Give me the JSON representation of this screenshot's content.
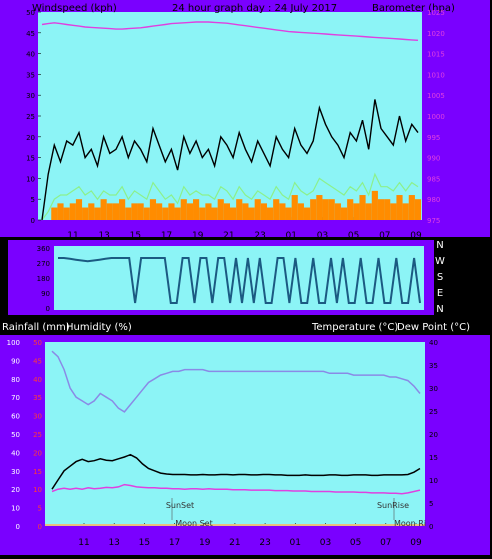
{
  "header": {
    "windspeed_label": "Windspeed (kph)",
    "title": "24 hour graph day : 24 July 2017",
    "barometer_label": "Barometer (hpa)"
  },
  "middle_header": {
    "rainfall_label": "Rainfall (mm)",
    "humidity_label": "Humidity (%)",
    "temperature_label": "Temperature (°C)",
    "dewpoint_label": "Dew Point (°C)"
  },
  "colors": {
    "frame": "#7a00ff",
    "plot_bg": "#8cf4f6",
    "gust": "#000000",
    "wind_avg": "#8cf08c",
    "wind_orange": "#ff8c00",
    "barometer": "#e040e0",
    "direction": "#1b5a82",
    "temperature": "#000000",
    "dewpoint": "#e040e0",
    "humidity": "#8a8ae6",
    "rain_axis_text": "#ff3b3b"
  },
  "chart_data": [
    {
      "type": "line",
      "name": "wind_and_barometer",
      "xlabel": "",
      "x_ticks": [
        "11",
        "13",
        "15",
        "17",
        "19",
        "21",
        "23",
        "01",
        "03",
        "05",
        "07",
        "09"
      ],
      "y_left_ticks": [
        0,
        5,
        10,
        15,
        20,
        25,
        30,
        35,
        40,
        45,
        50
      ],
      "y_left_range": [
        0,
        50
      ],
      "y_right_ticks": [
        975,
        980,
        985,
        990,
        995,
        1000,
        1005,
        1010,
        1015,
        1020,
        1025
      ],
      "y_right_range": [
        975,
        1025
      ],
      "grid": false,
      "series": [
        {
          "key": "gust",
          "values": [
            0,
            11,
            18,
            14,
            19,
            18,
            21,
            15,
            17,
            13,
            20,
            16,
            17,
            20,
            15,
            19,
            17,
            14,
            22,
            18,
            14,
            17,
            12,
            20,
            16,
            19,
            15,
            17,
            13,
            20,
            18,
            15,
            21,
            17,
            14,
            19,
            16,
            13,
            20,
            17,
            15,
            22,
            18,
            16,
            19,
            27,
            23,
            20,
            18,
            15,
            21,
            19,
            24,
            17,
            29,
            22,
            20,
            18,
            25,
            19,
            23,
            21
          ]
        },
        {
          "key": "wind_avg",
          "values": [
            0,
            2,
            5,
            6,
            6,
            7,
            8,
            6,
            7,
            5,
            7,
            6,
            6,
            8,
            5,
            7,
            6,
            5,
            9,
            7,
            5,
            6,
            4,
            8,
            6,
            7,
            6,
            6,
            5,
            8,
            7,
            5,
            8,
            6,
            5,
            7,
            6,
            5,
            8,
            6,
            5,
            9,
            7,
            6,
            7,
            10,
            9,
            8,
            7,
            6,
            8,
            7,
            9,
            6,
            11,
            8,
            8,
            7,
            9,
            7,
            9,
            8
          ]
        },
        {
          "key": "wind_orange",
          "values": [
            0,
            0,
            3,
            4,
            3,
            4,
            5,
            3,
            4,
            3,
            5,
            4,
            4,
            5,
            3,
            4,
            4,
            3,
            5,
            4,
            3,
            4,
            3,
            5,
            4,
            5,
            3,
            4,
            3,
            5,
            4,
            3,
            5,
            4,
            3,
            5,
            4,
            3,
            5,
            4,
            3,
            6,
            4,
            3,
            5,
            6,
            5,
            5,
            4,
            3,
            5,
            4,
            6,
            4,
            7,
            5,
            5,
            4,
            6,
            4,
            6,
            5
          ]
        },
        {
          "key": "barometer",
          "values": [
            1022,
            1022.2,
            1022.4,
            1022.2,
            1022,
            1021.8,
            1021.6,
            1021.4,
            1021.3,
            1021.2,
            1021.1,
            1021,
            1020.9,
            1020.9,
            1021,
            1021.1,
            1021.2,
            1021.4,
            1021.6,
            1021.8,
            1022,
            1022.2,
            1022.3,
            1022.4,
            1022.5,
            1022.6,
            1022.6,
            1022.6,
            1022.5,
            1022.4,
            1022.3,
            1022.1,
            1021.9,
            1021.7,
            1021.5,
            1021.3,
            1021.1,
            1020.9,
            1020.7,
            1020.5,
            1020.3,
            1020.2,
            1020.1,
            1020,
            1019.9,
            1019.8,
            1019.7,
            1019.6,
            1019.5,
            1019.4,
            1019.3,
            1019.2,
            1019.1,
            1019,
            1018.9,
            1018.8,
            1018.7,
            1018.6,
            1018.5,
            1018.4,
            1018.3,
            1018.2
          ]
        }
      ]
    },
    {
      "type": "line",
      "name": "wind_direction",
      "y_ticks": [
        360,
        270,
        180,
        90,
        0
      ],
      "y_range": [
        0,
        360
      ],
      "y_right_labels": [
        "N",
        "W",
        "S",
        "E",
        "N"
      ],
      "grid": false,
      "series": [
        {
          "key": "direction",
          "values": [
            300,
            300,
            295,
            290,
            285,
            280,
            285,
            290,
            295,
            300,
            300,
            300,
            300,
            30,
            300,
            300,
            300,
            300,
            300,
            30,
            30,
            300,
            300,
            30,
            300,
            300,
            30,
            300,
            300,
            30,
            300,
            30,
            300,
            30,
            300,
            30,
            30,
            300,
            300,
            30,
            300,
            30,
            30,
            300,
            30,
            30,
            300,
            30,
            300,
            30,
            30,
            300,
            30,
            30,
            300,
            30,
            30,
            300,
            30,
            30,
            300,
            30
          ]
        }
      ]
    },
    {
      "type": "line",
      "name": "temperature_humidity",
      "x_ticks": [
        "11",
        "13",
        "15",
        "17",
        "19",
        "21",
        "23",
        "01",
        "03",
        "05",
        "07",
        "09"
      ],
      "y_left_ticks": [
        0,
        10,
        20,
        30,
        40,
        50,
        60,
        70,
        80,
        90,
        100
      ],
      "y_left_range": [
        0,
        100
      ],
      "y_rain_ticks": [
        0,
        5,
        10,
        15,
        20,
        25,
        30,
        35,
        40,
        45,
        50
      ],
      "y_rain_range": [
        0,
        50
      ],
      "y_right_ticks": [
        0,
        5,
        10,
        15,
        20,
        25,
        30,
        35,
        40
      ],
      "y_right_range": [
        0,
        40
      ],
      "grid": false,
      "annotations": [
        {
          "text": "SunSet",
          "x": "17.6"
        },
        {
          "text": "SunRise",
          "x": "07.4"
        },
        {
          "text": "Moon Set",
          "x": "17.8"
        },
        {
          "text": "Moon Ri",
          "x": "08.3"
        }
      ],
      "series": [
        {
          "key": "humidity",
          "values": [
            95,
            92,
            85,
            75,
            70,
            68,
            66,
            68,
            72,
            70,
            68,
            64,
            62,
            66,
            70,
            74,
            78,
            80,
            82,
            83,
            84,
            84,
            85,
            85,
            85,
            85,
            84,
            84,
            84,
            84,
            84,
            84,
            84,
            84,
            84,
            84,
            84,
            84,
            84,
            84,
            84,
            84,
            84,
            84,
            84,
            84,
            83,
            83,
            83,
            83,
            82,
            82,
            82,
            82,
            82,
            82,
            81,
            81,
            80,
            79,
            76,
            72
          ]
        },
        {
          "key": "temperature",
          "values": [
            8,
            10,
            12,
            13,
            14,
            14.5,
            14,
            14.2,
            14.6,
            14.3,
            14.2,
            14.6,
            15,
            15.5,
            14.8,
            13.5,
            12.5,
            12,
            11.5,
            11.3,
            11.2,
            11.2,
            11.2,
            11.1,
            11.1,
            11.2,
            11.1,
            11.1,
            11.2,
            11.2,
            11.1,
            11.2,
            11.2,
            11.1,
            11.1,
            11.2,
            11.2,
            11.1,
            11.1,
            11.0,
            11.0,
            11.0,
            11.1,
            11.0,
            11.0,
            11.0,
            11.1,
            11.1,
            11.0,
            11.0,
            11.1,
            11.1,
            11.1,
            11.0,
            11.0,
            11.1,
            11.1,
            11.1,
            11.1,
            11.2,
            11.7,
            12.5
          ]
        },
        {
          "key": "dewpoint",
          "values": [
            7.5,
            8,
            8.2,
            8,
            8.2,
            8,
            8.3,
            8.1,
            8.2,
            8.4,
            8.3,
            8.5,
            9,
            8.8,
            8.5,
            8.4,
            8.3,
            8.3,
            8.2,
            8.2,
            8.1,
            8.1,
            8.0,
            8.1,
            8.1,
            8.0,
            8.1,
            8.0,
            8.0,
            8.0,
            7.9,
            7.9,
            7.9,
            7.8,
            7.8,
            7.8,
            7.8,
            7.7,
            7.7,
            7.7,
            7.6,
            7.6,
            7.6,
            7.5,
            7.5,
            7.5,
            7.5,
            7.4,
            7.4,
            7.4,
            7.4,
            7.3,
            7.3,
            7.2,
            7.2,
            7.2,
            7.1,
            7.1,
            7.0,
            7.2,
            7.5,
            7.8
          ]
        }
      ]
    }
  ]
}
